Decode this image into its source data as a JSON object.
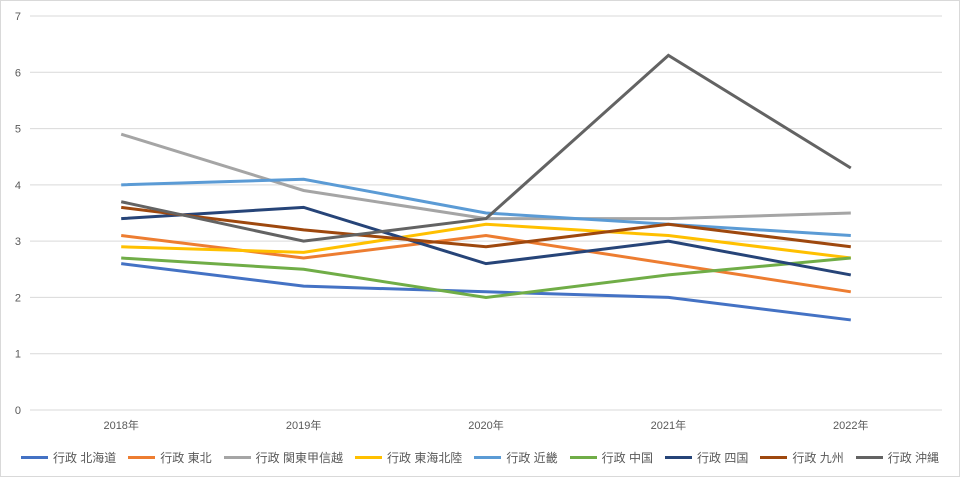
{
  "chart_data": {
    "type": "line",
    "title": "",
    "xlabel": "",
    "ylabel": "",
    "x": [
      "2018年",
      "2019年",
      "2020年",
      "2021年",
      "2022年"
    ],
    "series": [
      {
        "name": "行政 北海道",
        "color": "#4472C4",
        "values": [
          2.6,
          2.2,
          2.1,
          2.0,
          1.6
        ]
      },
      {
        "name": "行政 東北",
        "color": "#ED7D31",
        "values": [
          3.1,
          2.7,
          3.1,
          2.6,
          2.1
        ]
      },
      {
        "name": "行政 関東甲信越",
        "color": "#A5A5A5",
        "values": [
          4.9,
          3.9,
          3.4,
          3.4,
          3.5
        ]
      },
      {
        "name": "行政 東海北陸",
        "color": "#FFC000",
        "values": [
          2.9,
          2.8,
          3.3,
          3.1,
          2.7
        ]
      },
      {
        "name": "行政 近畿",
        "color": "#5B9BD5",
        "values": [
          4.0,
          4.1,
          3.5,
          3.3,
          3.1
        ]
      },
      {
        "name": "行政 中国",
        "color": "#70AD47",
        "values": [
          2.7,
          2.5,
          2.0,
          2.4,
          2.7
        ]
      },
      {
        "name": "行政 四国",
        "color": "#264478",
        "values": [
          3.4,
          3.6,
          2.6,
          3.0,
          2.4
        ]
      },
      {
        "name": "行政 九州",
        "color": "#9E480E",
        "values": [
          3.6,
          3.2,
          2.9,
          3.3,
          2.9
        ]
      },
      {
        "name": "行政 沖縄",
        "color": "#636363",
        "values": [
          3.7,
          3.0,
          3.4,
          6.3,
          4.3
        ]
      }
    ],
    "ylim": [
      0,
      7
    ],
    "yticks": [
      0,
      1,
      2,
      3,
      4,
      5,
      6,
      7
    ],
    "grid": true,
    "legend_position": "bottom"
  },
  "colors": {
    "grid": "#D9D9D9",
    "border": "#D9D9D9",
    "tick_text": "#595959",
    "background": "#FFFFFF"
  }
}
